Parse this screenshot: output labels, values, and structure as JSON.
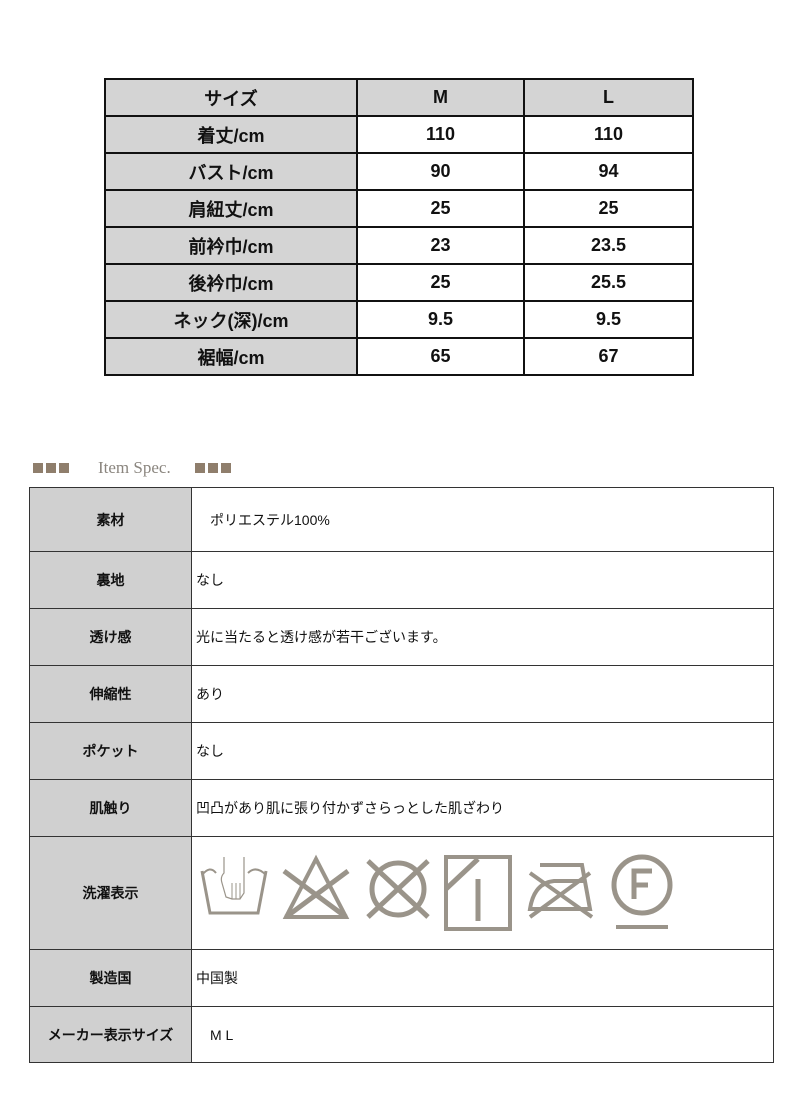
{
  "size_table": {
    "header": [
      "サイズ",
      "M",
      "L"
    ],
    "rows": [
      [
        "着丈/cm",
        "110",
        "110"
      ],
      [
        "バスト/cm",
        "90",
        "94"
      ],
      [
        "肩紐丈/cm",
        "25",
        "25"
      ],
      [
        "前衿巾/cm",
        "23",
        "23.5"
      ],
      [
        "後衿巾/cm",
        "25",
        "25.5"
      ],
      [
        "ネック(深)/cm",
        "9.5",
        "9.5"
      ],
      [
        "裾幅/cm",
        "65",
        "67"
      ]
    ]
  },
  "spec": {
    "title": "Item Spec.",
    "rows": [
      {
        "label": "素材",
        "value": "　ポリエステル100%"
      },
      {
        "label": "裏地",
        "value": "なし"
      },
      {
        "label": "透け感",
        "value": "光に当たると透け感が若干ございます。"
      },
      {
        "label": "伸縮性",
        "value": "あり"
      },
      {
        "label": "ポケット",
        "value": "なし"
      },
      {
        "label": "肌触り",
        "value": "凹凸があり肌に張り付かずさらっとした肌ざわり"
      },
      {
        "label": "洗濯表示",
        "icons": [
          "hand-wash-icon",
          "no-bleach-icon",
          "no-tumble-dry-icon",
          "line-dry-shade-icon",
          "no-iron-icon",
          "dry-clean-f-icon"
        ]
      },
      {
        "label": "製造国",
        "value": "中国製"
      },
      {
        "label": "メーカー表示サイズ",
        "value": "　M  L"
      }
    ]
  },
  "colors": {
    "icon": "#9a948a",
    "header_gray": "#d4d4d4",
    "accent_square": "#8f7e6c"
  }
}
